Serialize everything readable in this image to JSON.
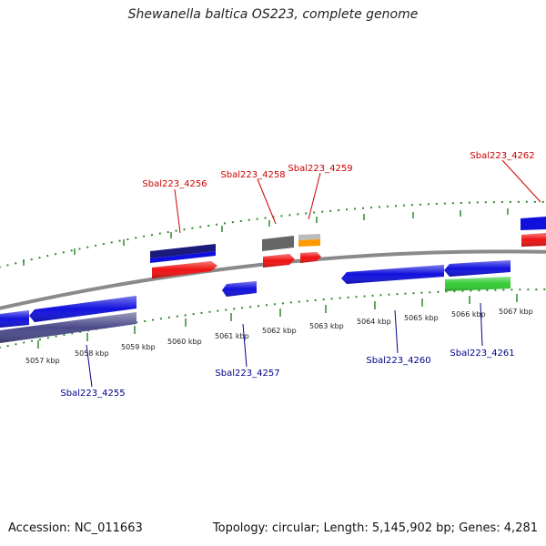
{
  "title": "Shewanella baltica OS223, complete genome",
  "footer": {
    "accession": "Accession: NC_011663",
    "topology": "Topology: circular; Length: 5,145,902 bp; Genes: 4,281"
  },
  "colors": {
    "backbone": "#8a8a8a",
    "tick": "#2e8b2e",
    "forward_label": "#cc0000",
    "reverse_label": "#00008b",
    "gene_blue": "#1010dd",
    "gene_red": "#ee1111",
    "gene_green": "#33cc33",
    "gene_navy": "#1a1a7a",
    "gene_grey": "#666666",
    "gene_orange": "#ff9900",
    "gene_purple": "#4a4a8a"
  },
  "scale_labels": [
    "5057 kbp",
    "5058 kbp",
    "5059 kbp",
    "5060 kbp",
    "5061 kbp",
    "5062 kbp",
    "5063 kbp",
    "5064 kbp",
    "5065 kbp",
    "5066 kbp",
    "5067 kbp"
  ],
  "forward_labels": [
    "Sbal223_4256",
    "Sbal223_4258",
    "Sbal223_4259",
    "Sbal223_4262"
  ],
  "reverse_labels": [
    "Sbal223_4255",
    "Sbal223_4257",
    "Sbal223_4260",
    "Sbal223_4261"
  ]
}
